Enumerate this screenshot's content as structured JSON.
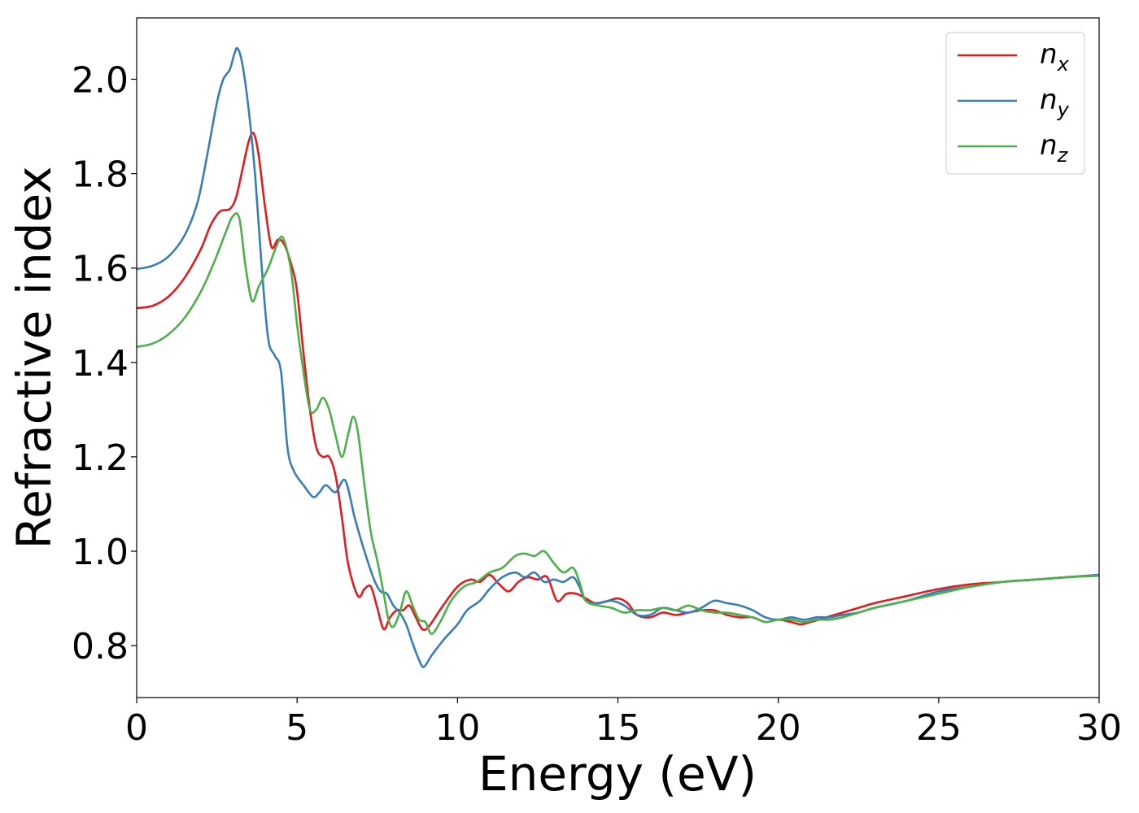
{
  "chart_data": {
    "type": "line",
    "title": "",
    "xlabel": "Energy (eV)",
    "ylabel": "Refractive index",
    "xlim": [
      0,
      30
    ],
    "ylim": [
      0.69,
      2.13
    ],
    "xticks": [
      0,
      5,
      10,
      15,
      20,
      25,
      30
    ],
    "yticks": [
      0.8,
      1.0,
      1.2,
      1.4,
      1.6,
      1.8,
      2.0
    ],
    "xtick_labels": [
      "0",
      "5",
      "10",
      "15",
      "20",
      "25",
      "30"
    ],
    "ytick_labels": [
      "0.8",
      "1.0",
      "1.2",
      "1.4",
      "1.6",
      "1.8",
      "2.0"
    ],
    "grid": false,
    "legend_position": "top-right",
    "series": [
      {
        "name": "n_x",
        "legend_main": "n",
        "legend_sub": "x",
        "color": "#e41a1c",
        "points": [
          [
            0,
            1.515
          ],
          [
            0.5,
            1.52
          ],
          [
            1.0,
            1.54
          ],
          [
            1.5,
            1.58
          ],
          [
            2.0,
            1.64
          ],
          [
            2.3,
            1.69
          ],
          [
            2.6,
            1.72
          ],
          [
            2.9,
            1.725
          ],
          [
            3.1,
            1.75
          ],
          [
            3.3,
            1.81
          ],
          [
            3.5,
            1.87
          ],
          [
            3.65,
            1.885
          ],
          [
            3.8,
            1.84
          ],
          [
            4.0,
            1.73
          ],
          [
            4.2,
            1.645
          ],
          [
            4.4,
            1.66
          ],
          [
            4.6,
            1.65
          ],
          [
            4.85,
            1.6
          ],
          [
            5.0,
            1.55
          ],
          [
            5.2,
            1.42
          ],
          [
            5.4,
            1.3
          ],
          [
            5.6,
            1.22
          ],
          [
            5.8,
            1.2
          ],
          [
            6.0,
            1.2
          ],
          [
            6.2,
            1.16
          ],
          [
            6.4,
            1.07
          ],
          [
            6.6,
            0.97
          ],
          [
            6.9,
            0.905
          ],
          [
            7.1,
            0.92
          ],
          [
            7.3,
            0.925
          ],
          [
            7.5,
            0.88
          ],
          [
            7.7,
            0.835
          ],
          [
            7.9,
            0.86
          ],
          [
            8.1,
            0.875
          ],
          [
            8.3,
            0.875
          ],
          [
            8.5,
            0.885
          ],
          [
            8.7,
            0.86
          ],
          [
            8.9,
            0.835
          ],
          [
            9.1,
            0.84
          ],
          [
            9.5,
            0.88
          ],
          [
            10.0,
            0.925
          ],
          [
            10.4,
            0.94
          ],
          [
            10.7,
            0.935
          ],
          [
            11.0,
            0.95
          ],
          [
            11.3,
            0.93
          ],
          [
            11.6,
            0.915
          ],
          [
            11.9,
            0.935
          ],
          [
            12.2,
            0.945
          ],
          [
            12.5,
            0.94
          ],
          [
            12.8,
            0.945
          ],
          [
            13.1,
            0.895
          ],
          [
            13.4,
            0.91
          ],
          [
            13.7,
            0.91
          ],
          [
            14.0,
            0.9
          ],
          [
            14.3,
            0.89
          ],
          [
            14.7,
            0.895
          ],
          [
            15.0,
            0.9
          ],
          [
            15.3,
            0.89
          ],
          [
            15.6,
            0.865
          ],
          [
            16.0,
            0.86
          ],
          [
            16.4,
            0.87
          ],
          [
            16.8,
            0.865
          ],
          [
            17.2,
            0.87
          ],
          [
            17.6,
            0.875
          ],
          [
            18.0,
            0.875
          ],
          [
            18.4,
            0.865
          ],
          [
            18.8,
            0.86
          ],
          [
            19.2,
            0.86
          ],
          [
            19.6,
            0.85
          ],
          [
            20.0,
            0.855
          ],
          [
            20.4,
            0.85
          ],
          [
            20.7,
            0.845
          ],
          [
            21.0,
            0.85
          ],
          [
            21.5,
            0.86
          ],
          [
            22.0,
            0.87
          ],
          [
            22.5,
            0.88
          ],
          [
            23.0,
            0.89
          ],
          [
            24.0,
            0.905
          ],
          [
            25.0,
            0.92
          ],
          [
            26.0,
            0.93
          ],
          [
            27.0,
            0.935
          ],
          [
            28.0,
            0.94
          ],
          [
            29.0,
            0.945
          ],
          [
            30.0,
            0.95
          ]
        ]
      },
      {
        "name": "n_y",
        "legend_main": "n",
        "legend_sub": "y",
        "color": "#377eb8",
        "points": [
          [
            0,
            1.598
          ],
          [
            0.5,
            1.605
          ],
          [
            1.0,
            1.625
          ],
          [
            1.5,
            1.67
          ],
          [
            1.9,
            1.74
          ],
          [
            2.2,
            1.84
          ],
          [
            2.5,
            1.95
          ],
          [
            2.7,
            2.0
          ],
          [
            2.9,
            2.02
          ],
          [
            3.05,
            2.055
          ],
          [
            3.15,
            2.065
          ],
          [
            3.3,
            2.03
          ],
          [
            3.5,
            1.93
          ],
          [
            3.7,
            1.79
          ],
          [
            3.9,
            1.6
          ],
          [
            4.1,
            1.45
          ],
          [
            4.3,
            1.415
          ],
          [
            4.5,
            1.38
          ],
          [
            4.7,
            1.22
          ],
          [
            4.9,
            1.17
          ],
          [
            5.2,
            1.14
          ],
          [
            5.5,
            1.115
          ],
          [
            5.7,
            1.125
          ],
          [
            5.9,
            1.14
          ],
          [
            6.2,
            1.125
          ],
          [
            6.5,
            1.15
          ],
          [
            6.8,
            1.07
          ],
          [
            7.1,
            1.0
          ],
          [
            7.4,
            0.94
          ],
          [
            7.6,
            0.915
          ],
          [
            7.8,
            0.91
          ],
          [
            8.0,
            0.885
          ],
          [
            8.2,
            0.87
          ],
          [
            8.4,
            0.845
          ],
          [
            8.6,
            0.805
          ],
          [
            8.8,
            0.77
          ],
          [
            8.95,
            0.755
          ],
          [
            9.2,
            0.78
          ],
          [
            9.6,
            0.815
          ],
          [
            10.0,
            0.845
          ],
          [
            10.3,
            0.875
          ],
          [
            10.7,
            0.895
          ],
          [
            11.0,
            0.92
          ],
          [
            11.4,
            0.945
          ],
          [
            11.8,
            0.955
          ],
          [
            12.1,
            0.945
          ],
          [
            12.4,
            0.955
          ],
          [
            12.7,
            0.935
          ],
          [
            13.0,
            0.94
          ],
          [
            13.3,
            0.935
          ],
          [
            13.6,
            0.945
          ],
          [
            13.8,
            0.925
          ],
          [
            14.0,
            0.895
          ],
          [
            14.4,
            0.89
          ],
          [
            14.8,
            0.895
          ],
          [
            15.2,
            0.885
          ],
          [
            15.6,
            0.865
          ],
          [
            16.0,
            0.865
          ],
          [
            16.4,
            0.88
          ],
          [
            16.8,
            0.875
          ],
          [
            17.2,
            0.87
          ],
          [
            17.6,
            0.88
          ],
          [
            18.0,
            0.895
          ],
          [
            18.4,
            0.89
          ],
          [
            18.8,
            0.885
          ],
          [
            19.2,
            0.875
          ],
          [
            19.6,
            0.86
          ],
          [
            20.0,
            0.855
          ],
          [
            20.4,
            0.86
          ],
          [
            20.8,
            0.855
          ],
          [
            21.2,
            0.86
          ],
          [
            21.6,
            0.86
          ],
          [
            22.0,
            0.865
          ],
          [
            22.5,
            0.87
          ],
          [
            23.0,
            0.88
          ],
          [
            24.0,
            0.895
          ],
          [
            25.0,
            0.915
          ],
          [
            26.0,
            0.925
          ],
          [
            27.0,
            0.935
          ],
          [
            28.0,
            0.94
          ],
          [
            29.0,
            0.945
          ],
          [
            30.0,
            0.95
          ]
        ]
      },
      {
        "name": "n_z",
        "legend_main": "n",
        "legend_sub": "z",
        "color": "#4daf4a",
        "points": [
          [
            0,
            1.433
          ],
          [
            0.5,
            1.44
          ],
          [
            1.0,
            1.46
          ],
          [
            1.5,
            1.495
          ],
          [
            2.0,
            1.55
          ],
          [
            2.4,
            1.61
          ],
          [
            2.8,
            1.68
          ],
          [
            3.0,
            1.71
          ],
          [
            3.2,
            1.705
          ],
          [
            3.4,
            1.6
          ],
          [
            3.6,
            1.53
          ],
          [
            3.8,
            1.56
          ],
          [
            4.1,
            1.6
          ],
          [
            4.35,
            1.645
          ],
          [
            4.55,
            1.665
          ],
          [
            4.8,
            1.6
          ],
          [
            5.0,
            1.48
          ],
          [
            5.2,
            1.38
          ],
          [
            5.4,
            1.3
          ],
          [
            5.6,
            1.3
          ],
          [
            5.8,
            1.325
          ],
          [
            6.0,
            1.3
          ],
          [
            6.2,
            1.245
          ],
          [
            6.4,
            1.2
          ],
          [
            6.6,
            1.25
          ],
          [
            6.75,
            1.285
          ],
          [
            6.9,
            1.25
          ],
          [
            7.1,
            1.14
          ],
          [
            7.3,
            1.04
          ],
          [
            7.5,
            0.98
          ],
          [
            7.7,
            0.91
          ],
          [
            7.85,
            0.855
          ],
          [
            8.0,
            0.84
          ],
          [
            8.2,
            0.87
          ],
          [
            8.4,
            0.915
          ],
          [
            8.6,
            0.885
          ],
          [
            8.8,
            0.855
          ],
          [
            9.0,
            0.85
          ],
          [
            9.2,
            0.825
          ],
          [
            9.5,
            0.855
          ],
          [
            9.8,
            0.895
          ],
          [
            10.2,
            0.925
          ],
          [
            10.6,
            0.935
          ],
          [
            11.0,
            0.955
          ],
          [
            11.4,
            0.965
          ],
          [
            11.8,
            0.99
          ],
          [
            12.1,
            0.995
          ],
          [
            12.4,
            0.99
          ],
          [
            12.7,
            1.0
          ],
          [
            13.0,
            0.975
          ],
          [
            13.3,
            0.955
          ],
          [
            13.6,
            0.965
          ],
          [
            13.8,
            0.935
          ],
          [
            14.0,
            0.895
          ],
          [
            14.4,
            0.885
          ],
          [
            14.8,
            0.88
          ],
          [
            15.2,
            0.87
          ],
          [
            15.6,
            0.875
          ],
          [
            16.0,
            0.875
          ],
          [
            16.4,
            0.88
          ],
          [
            16.8,
            0.875
          ],
          [
            17.2,
            0.885
          ],
          [
            17.6,
            0.875
          ],
          [
            18.0,
            0.87
          ],
          [
            18.4,
            0.87
          ],
          [
            18.8,
            0.865
          ],
          [
            19.2,
            0.86
          ],
          [
            19.6,
            0.85
          ],
          [
            20.0,
            0.855
          ],
          [
            20.4,
            0.855
          ],
          [
            20.8,
            0.85
          ],
          [
            21.2,
            0.855
          ],
          [
            21.6,
            0.855
          ],
          [
            22.0,
            0.86
          ],
          [
            22.5,
            0.87
          ],
          [
            23.0,
            0.88
          ],
          [
            24.0,
            0.895
          ],
          [
            25.0,
            0.91
          ],
          [
            26.0,
            0.925
          ],
          [
            27.0,
            0.935
          ],
          [
            28.0,
            0.94
          ],
          [
            29.0,
            0.945
          ],
          [
            30.0,
            0.948
          ]
        ]
      }
    ]
  }
}
